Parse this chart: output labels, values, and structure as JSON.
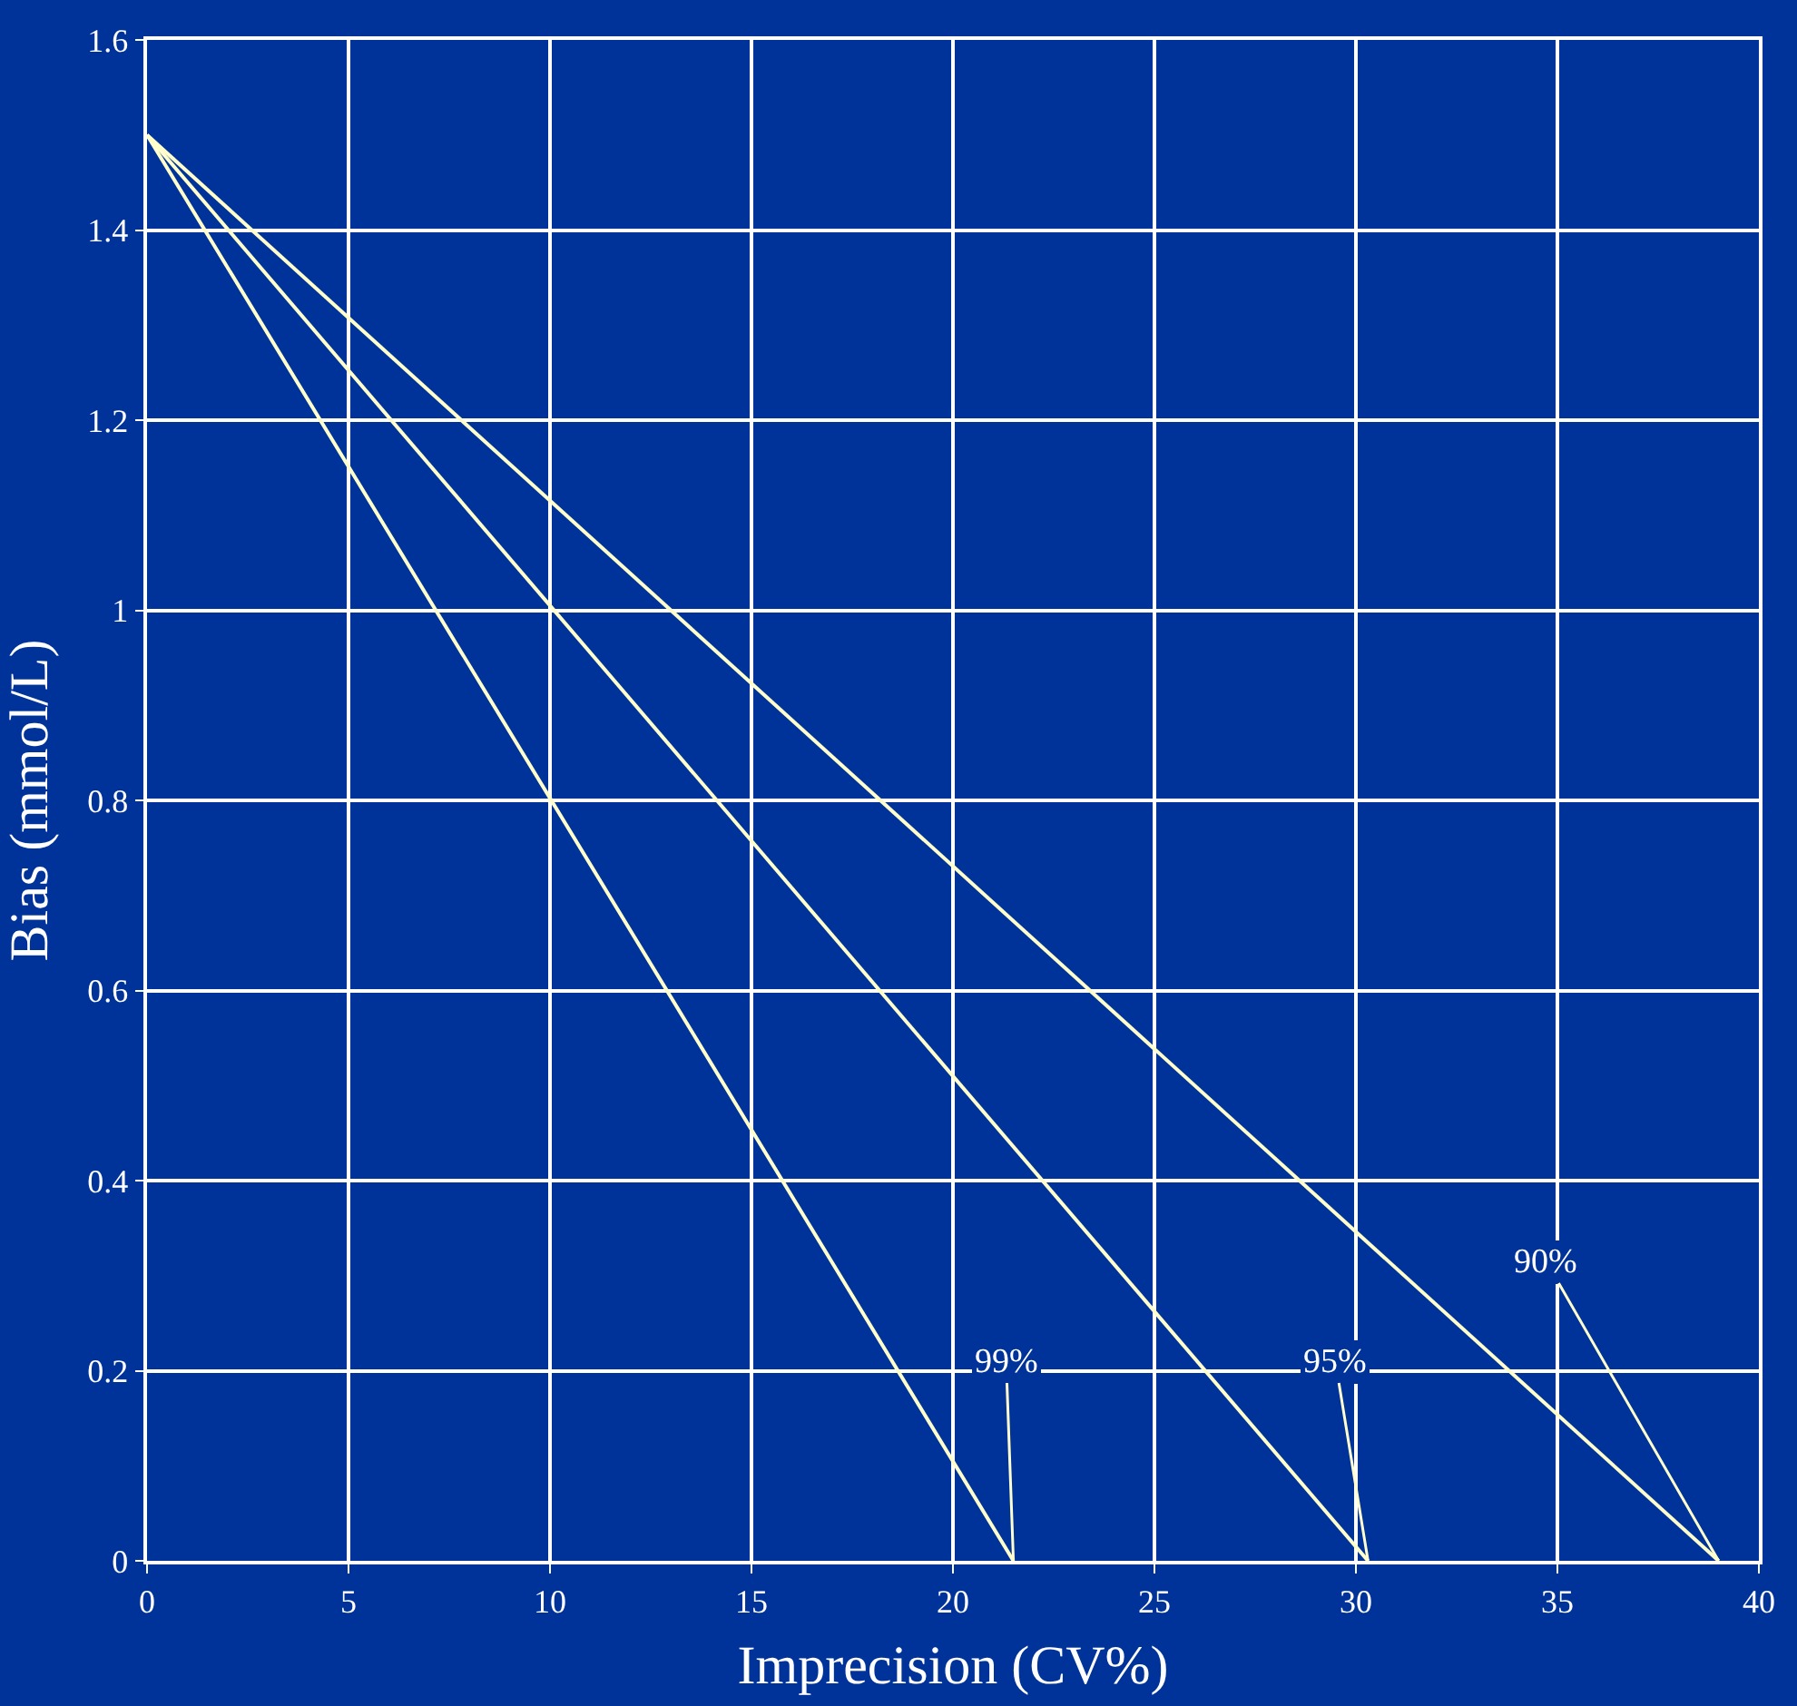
{
  "chart_data": {
    "type": "line",
    "xlabel": "Imprecision (CV%)",
    "ylabel": "Bias (mmol/L)",
    "series": [
      {
        "x": [
          0,
          21.5
        ],
        "values": [
          1.5,
          0
        ],
        "color": "#ffffcc"
      },
      {
        "x": [
          0,
          30.3
        ],
        "values": [
          1.5,
          0
        ],
        "color": "#ffffcc"
      },
      {
        "x": [
          0,
          39
        ],
        "values": [
          1.5,
          0
        ],
        "color": "#ffffcc"
      }
    ],
    "xlim": [
      0,
      40
    ],
    "xticks": [
      0,
      5,
      10,
      15,
      20,
      25,
      30,
      35,
      40
    ],
    "ylim": [
      0,
      1.6
    ],
    "yticks": [
      0,
      0.2,
      0.4,
      0.6,
      0.8,
      1,
      1.2,
      1.4,
      1.6
    ],
    "annotations": [
      {
        "text": "99%",
        "x": 21.5,
        "y": 0
      },
      {
        "text": "95%",
        "x": 30.3,
        "y": 0
      },
      {
        "text": "90%",
        "x": 39,
        "y": 0
      }
    ],
    "grid": true,
    "marker": "none",
    "line_style": "solid"
  }
}
